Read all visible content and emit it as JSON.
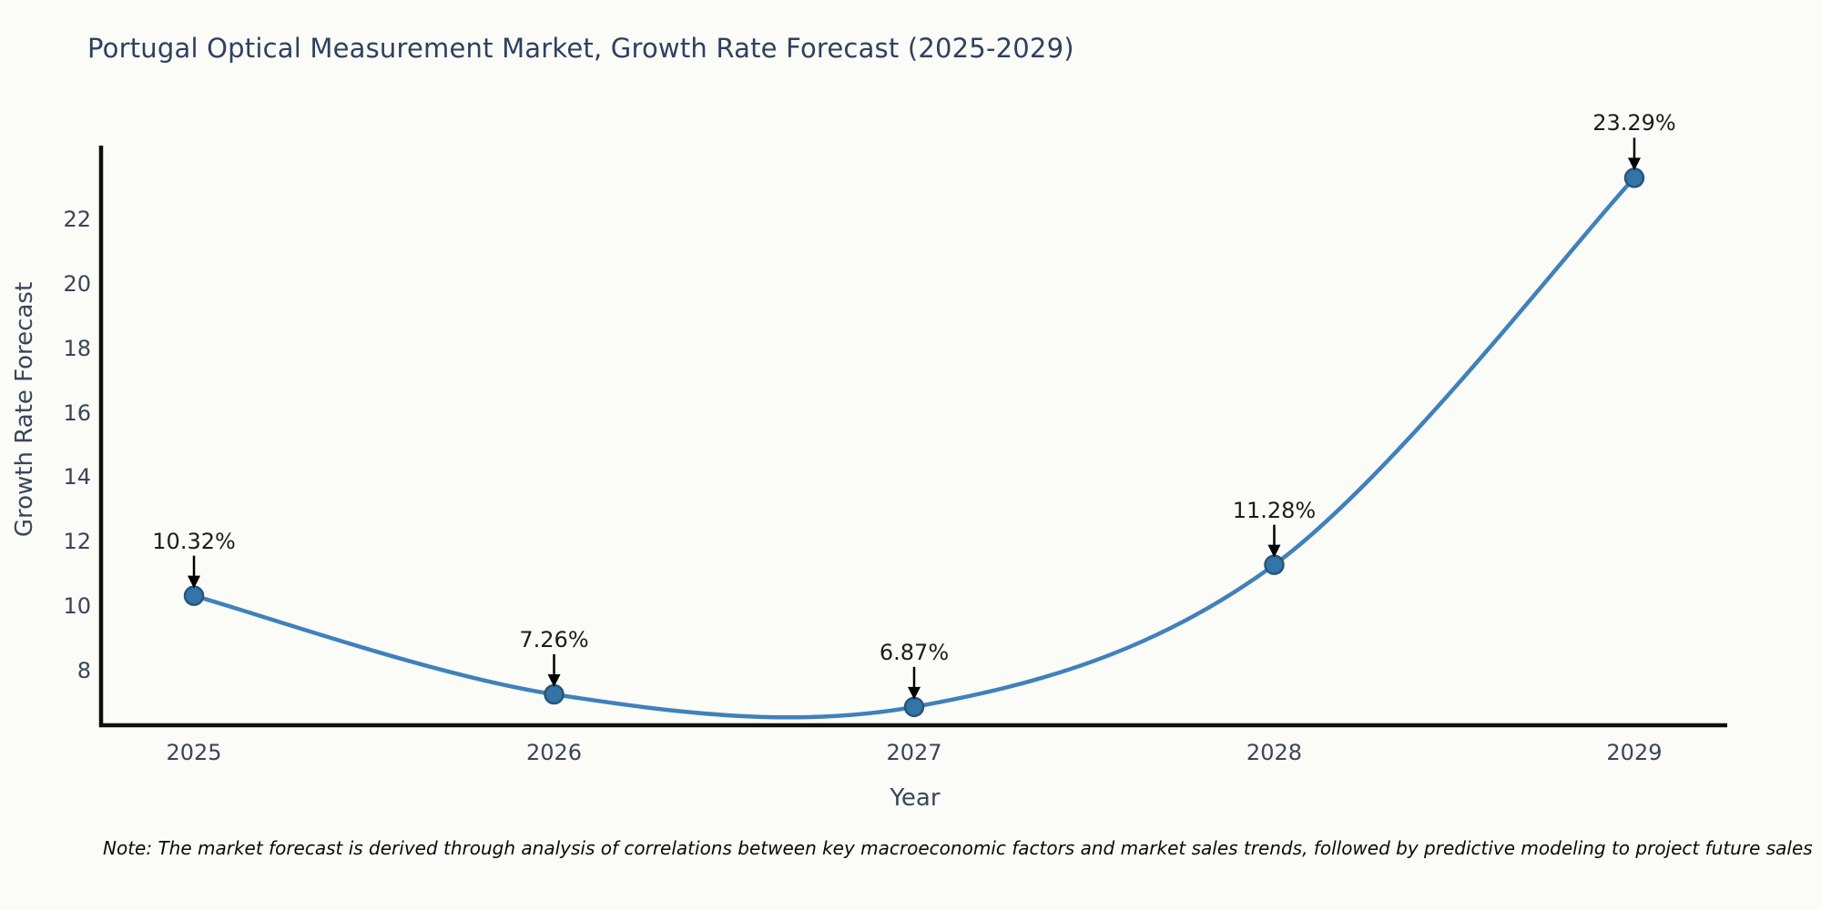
{
  "chart_data": {
    "type": "line",
    "title": "Portugal Optical Measurement Market, Growth Rate Forecast (2025-2029)",
    "xlabel": "Year",
    "ylabel": "Growth Rate Forecast",
    "x": [
      2025,
      2026,
      2027,
      2028,
      2029
    ],
    "values": [
      10.32,
      7.26,
      6.87,
      11.28,
      23.29
    ],
    "point_labels": [
      "10.32%",
      "7.26%",
      "6.87%",
      "11.28%",
      "23.29%"
    ],
    "xtick_labels": [
      "2025",
      "2026",
      "2027",
      "2028",
      "2029"
    ],
    "ytick_values": [
      8,
      10,
      12,
      14,
      16,
      18,
      20,
      22
    ],
    "xlim": [
      2024.742,
      2029.258
    ],
    "ylim": [
      6.3,
      24.29
    ],
    "grid": false,
    "legend": null,
    "colors": {
      "line": "#3f81bb",
      "marker_fill": "#3474a6",
      "marker_edge": "#26567d",
      "spine": "#0d0d0d",
      "arrow": "#000000",
      "title": "#2f4160",
      "tick": "#3a4554",
      "annotation": "#1c1c1c"
    },
    "note": "Note: The market forecast is derived through analysis of correlations between key macroeconomic factors and market sales trends, followed by predictive modeling to project future sales"
  }
}
